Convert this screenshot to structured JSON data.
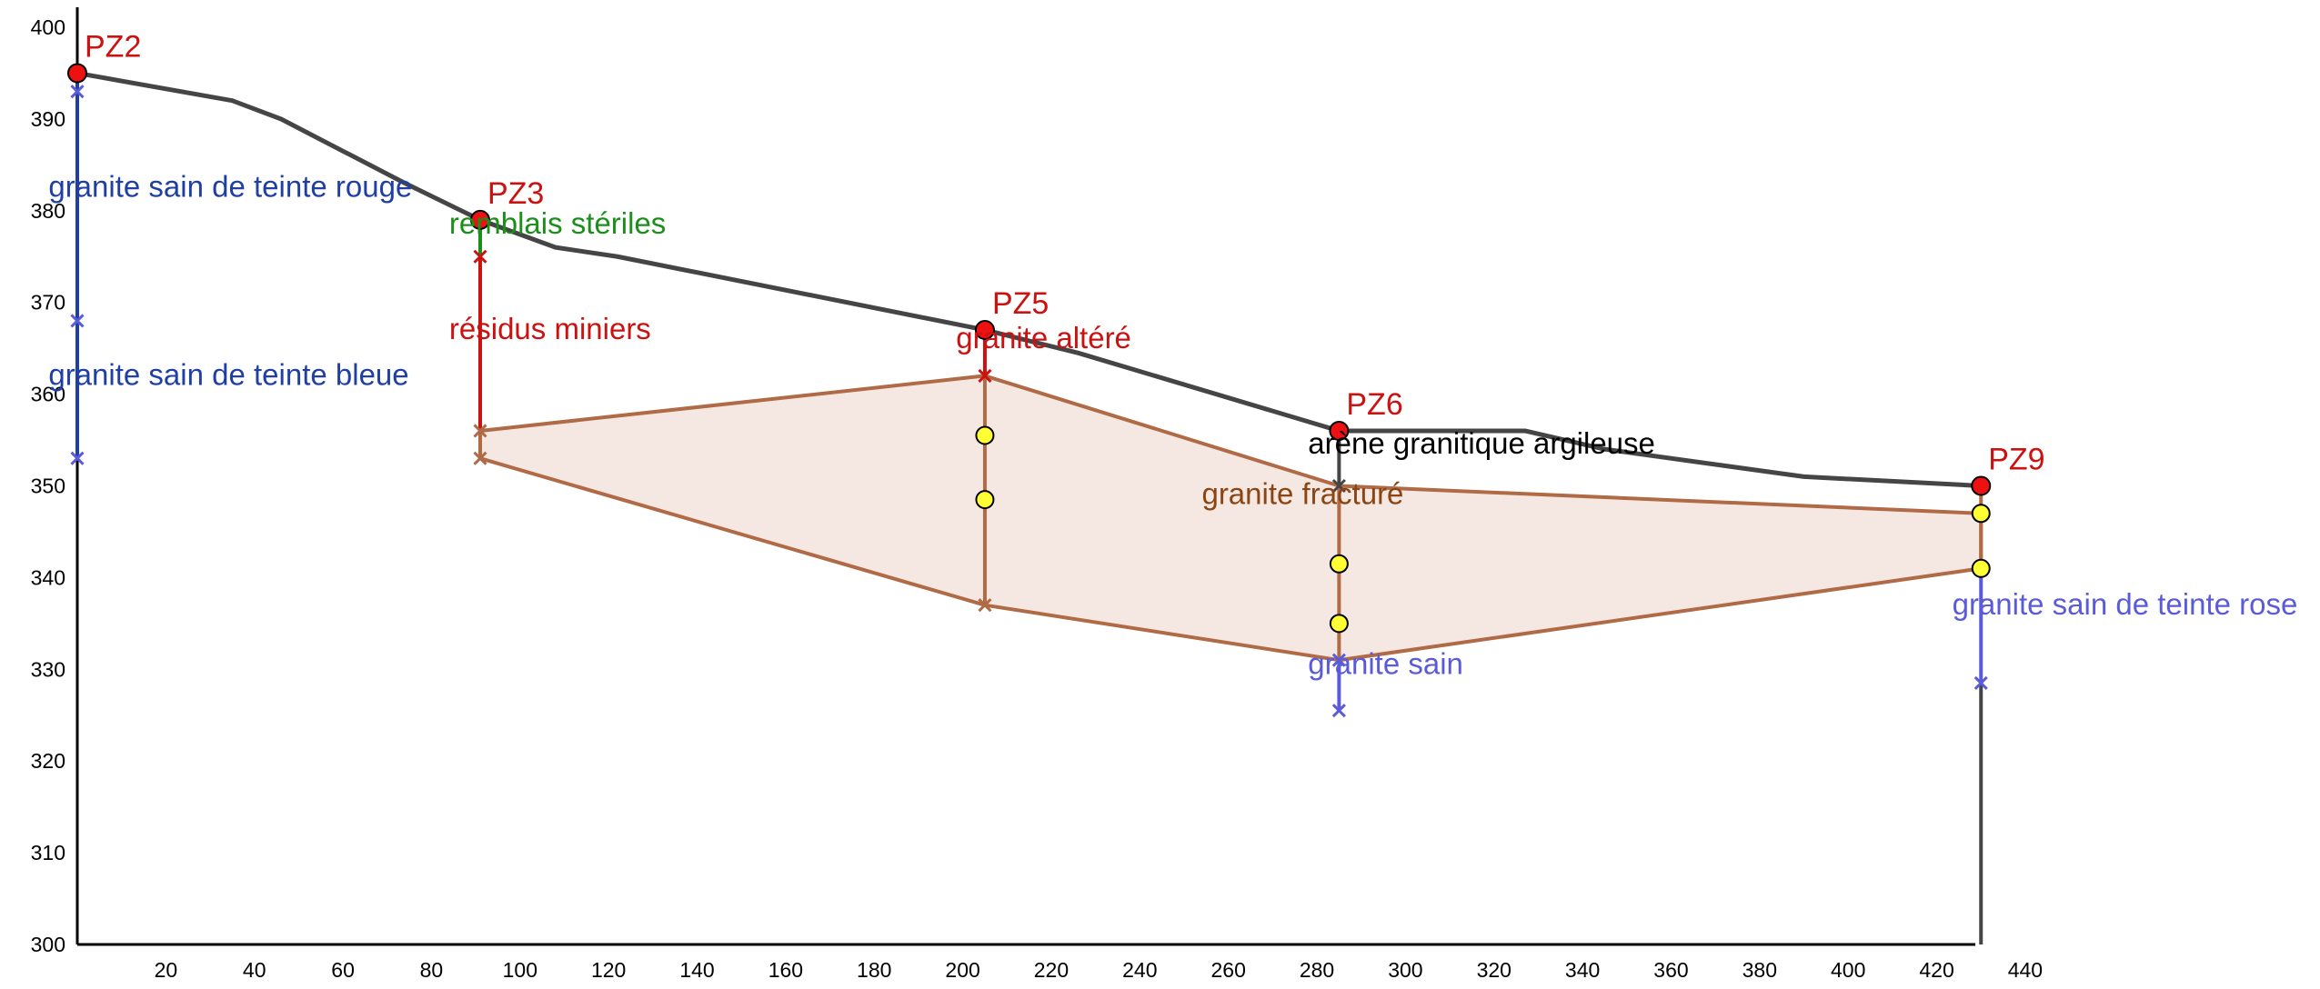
{
  "chart_data": {
    "type": "geological-cross-section",
    "xlim": [
      0,
      440
    ],
    "ylim": [
      300,
      400
    ],
    "x_ticks": [
      20,
      40,
      60,
      80,
      100,
      120,
      140,
      160,
      180,
      200,
      220,
      240,
      260,
      280,
      300,
      320,
      340,
      360,
      380,
      400,
      420,
      440
    ],
    "y_ticks": [
      300,
      310,
      320,
      330,
      340,
      350,
      360,
      370,
      380,
      390,
      400
    ],
    "colors": {
      "surface": "#454545",
      "well_marker": "#ee1111",
      "well_label": "#cc1111",
      "aquifer_fill": "#f5e8e2",
      "aquifer_line": "#b06a45",
      "sample_point": "#ffff33",
      "dark_blue": "#1f3fa3",
      "light_blue": "#5b5bd9",
      "green": "#1a8f1a",
      "red_text": "#cc1111",
      "brown_text": "#8b4513"
    },
    "surface_profile": [
      {
        "x": 0,
        "y": 395
      },
      {
        "x": 35,
        "y": 392
      },
      {
        "x": 46,
        "y": 390
      },
      {
        "x": 74,
        "y": 383
      },
      {
        "x": 91,
        "y": 379
      },
      {
        "x": 108,
        "y": 376
      },
      {
        "x": 122,
        "y": 375
      },
      {
        "x": 205,
        "y": 367
      },
      {
        "x": 226,
        "y": 364.5
      },
      {
        "x": 285,
        "y": 356
      },
      {
        "x": 327,
        "y": 356
      },
      {
        "x": 345,
        "y": 354
      },
      {
        "x": 390,
        "y": 351
      },
      {
        "x": 430,
        "y": 350
      }
    ],
    "aquifer_polygon": [
      {
        "x": 91,
        "y": 356
      },
      {
        "x": 205,
        "y": 362
      },
      {
        "x": 285,
        "y": 350
      },
      {
        "x": 430,
        "y": 347
      },
      {
        "x": 430,
        "y": 341
      },
      {
        "x": 285,
        "y": 331
      },
      {
        "x": 205,
        "y": 337
      },
      {
        "x": 91,
        "y": 353
      }
    ],
    "wells": [
      {
        "name": "PZ2",
        "x": 0,
        "y": 395
      },
      {
        "name": "PZ3",
        "x": 91,
        "y": 379
      },
      {
        "name": "PZ5",
        "x": 205,
        "y": 367
      },
      {
        "name": "PZ6",
        "x": 285,
        "y": 356
      },
      {
        "name": "PZ9",
        "x": 430,
        "y": 350
      }
    ],
    "well_segments": [
      {
        "x": 0,
        "y1": 395,
        "y2": 353,
        "color": "dark_blue"
      },
      {
        "x": 91,
        "y1": 379,
        "y2": 375,
        "color": "green"
      },
      {
        "x": 91,
        "y1": 375,
        "y2": 356,
        "color": "red_text"
      },
      {
        "x": 91,
        "y1": 356,
        "y2": 353,
        "color": "aquifer_line"
      },
      {
        "x": 205,
        "y1": 367,
        "y2": 362,
        "color": "red_text"
      },
      {
        "x": 205,
        "y1": 362,
        "y2": 337,
        "color": "aquifer_line"
      },
      {
        "x": 285,
        "y1": 356,
        "y2": 350,
        "color": "surface"
      },
      {
        "x": 285,
        "y1": 350,
        "y2": 331,
        "color": "aquifer_line"
      },
      {
        "x": 285,
        "y1": 331,
        "y2": 325.5,
        "color": "light_blue"
      },
      {
        "x": 430,
        "y1": 350,
        "y2": 341,
        "color": "aquifer_line"
      },
      {
        "x": 430,
        "y1": 341,
        "y2": 328.5,
        "color": "light_blue"
      },
      {
        "x": 430,
        "y1": 328.5,
        "y2": 300,
        "color": "surface"
      }
    ],
    "cross_markers": [
      {
        "x": 0,
        "y": 393,
        "color": "light_blue"
      },
      {
        "x": 0,
        "y": 368,
        "color": "light_blue"
      },
      {
        "x": 0,
        "y": 353,
        "color": "light_blue"
      },
      {
        "x": 91,
        "y": 375,
        "color": "red_text"
      },
      {
        "x": 91,
        "y": 356,
        "color": "aquifer_line"
      },
      {
        "x": 91,
        "y": 353,
        "color": "aquifer_line"
      },
      {
        "x": 205,
        "y": 362,
        "color": "red_text"
      },
      {
        "x": 205,
        "y": 337,
        "color": "aquifer_line"
      },
      {
        "x": 285,
        "y": 350,
        "color": "surface"
      },
      {
        "x": 285,
        "y": 331,
        "color": "light_blue"
      },
      {
        "x": 285,
        "y": 325.5,
        "color": "light_blue"
      },
      {
        "x": 430,
        "y": 328.5,
        "color": "light_blue"
      }
    ],
    "sample_points": [
      {
        "x": 205,
        "y": 355.5
      },
      {
        "x": 205,
        "y": 348.5
      },
      {
        "x": 285,
        "y": 341.5
      },
      {
        "x": 285,
        "y": 335
      },
      {
        "x": 430,
        "y": 347
      },
      {
        "x": 430,
        "y": 341
      }
    ],
    "layer_labels": [
      {
        "text": "granite sain de teinte rouge",
        "x": -6.5,
        "y": 381.5,
        "color": "dark_blue"
      },
      {
        "text": "granite sain de teinte bleue",
        "x": -6.5,
        "y": 361,
        "color": "dark_blue"
      },
      {
        "text": "remblais stériles",
        "x": 84,
        "y": 377.5,
        "color": "green"
      },
      {
        "text": "résidus miniers",
        "x": 84,
        "y": 366,
        "color": "red_text"
      },
      {
        "text": "granite altéré",
        "x": 198.5,
        "y": 365,
        "color": "red_text"
      },
      {
        "text": "arène granitique argileuse",
        "x": 278,
        "y": 353.5,
        "color": "black"
      },
      {
        "text": "granite fracturé",
        "x": 254,
        "y": 348,
        "color": "brown_text"
      },
      {
        "text": "granite sain",
        "x": 278,
        "y": 329.5,
        "color": "light_blue"
      },
      {
        "text": "granite sain de teinte rose",
        "x": 423.5,
        "y": 336,
        "color": "light_blue"
      }
    ]
  }
}
